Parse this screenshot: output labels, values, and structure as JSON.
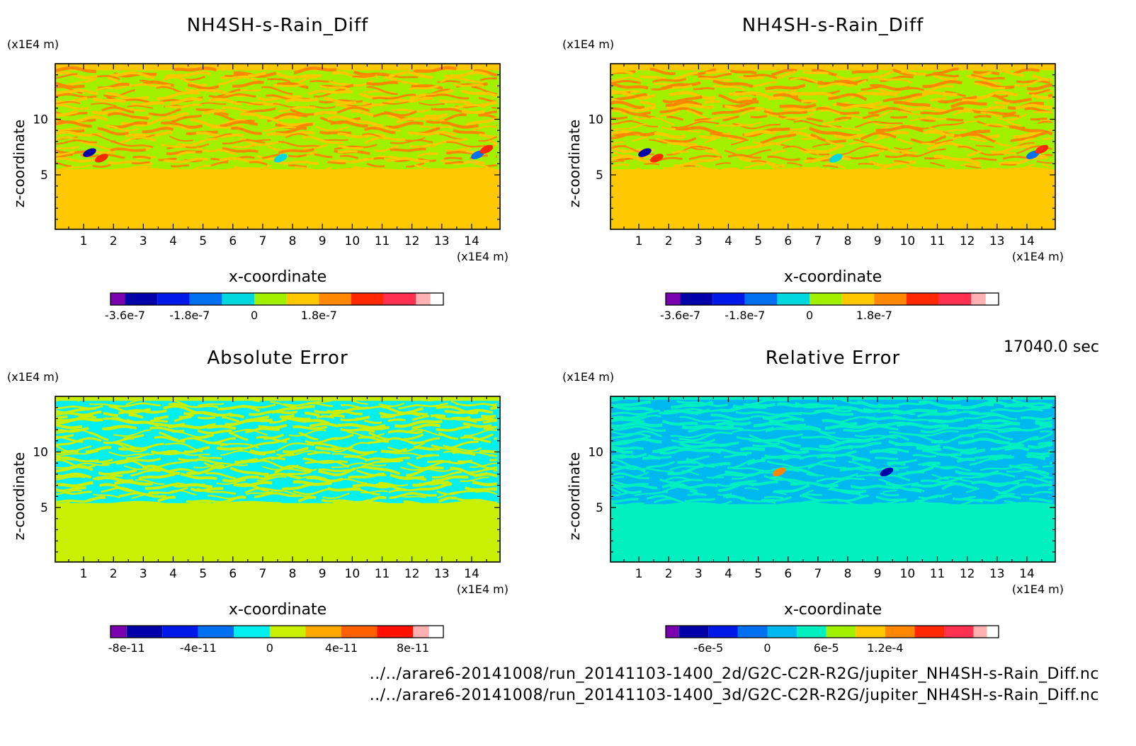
{
  "figure": {
    "timestamp": "17040.0 sec",
    "footer_lines": [
      "../../arare6-20141008/run_20141103-1400_2d/G2C-C2R-R2G/jupiter_NH4SH-s-Rain_Diff.nc",
      "../../arare6-20141008/run_20141103-1400_3d/G2C-C2R-R2G/jupiter_NH4SH-s-Rain_Diff.nc"
    ]
  },
  "chart_data": [
    {
      "type": "heatmap",
      "title": "NH4SH-s-Rain_Diff",
      "xlabel": "x-coordinate",
      "ylabel": "z-coordinate",
      "xunit": "(x1E4 m)",
      "yunit": "(x1E4 m)",
      "xlim": [
        0.05,
        14.95
      ],
      "ylim": [
        0.1,
        15.0
      ],
      "xticks": [
        1,
        2,
        3,
        4,
        5,
        6,
        7,
        8,
        9,
        10,
        11,
        12,
        13,
        14
      ],
      "yticks": [
        5,
        10
      ],
      "colorbar": {
        "colors": [
          "#7a00b0",
          "#0000a8",
          "#0018e8",
          "#0070f0",
          "#00d8e0",
          "#a0f000",
          "#ffc800",
          "#ff8800",
          "#ff2800",
          "#ff3050",
          "#ffb0b0"
        ],
        "tick_labels": [
          "-3.6e-7",
          "-1.8e-7",
          "0",
          "1.8e-7"
        ],
        "tick_positions": [
          1,
          3,
          5,
          7
        ]
      },
      "field": {
        "background": "#ffc800",
        "stripe_a": "#a0f000",
        "stripe_b": "#ff8800",
        "lower_fill": "#ffc800",
        "layer_top": 14.4,
        "layer_bottom": 5.5
      },
      "anomalies": [
        {
          "x": 1.2,
          "z": 7.0,
          "color": "#0000a8"
        },
        {
          "x": 1.6,
          "z": 6.5,
          "color": "#ff2800"
        },
        {
          "x": 14.2,
          "z": 6.8,
          "color": "#0070f0"
        },
        {
          "x": 14.5,
          "z": 7.3,
          "color": "#ff2800"
        },
        {
          "x": 7.6,
          "z": 6.5,
          "color": "#00d8e0"
        }
      ]
    },
    {
      "type": "heatmap",
      "title": "NH4SH-s-Rain_Diff",
      "xlabel": "x-coordinate",
      "ylabel": "z-coordinate",
      "xunit": "(x1E4 m)",
      "yunit": "(x1E4 m)",
      "xlim": [
        0.05,
        14.95
      ],
      "ylim": [
        0.1,
        15.0
      ],
      "xticks": [
        1,
        2,
        3,
        4,
        5,
        6,
        7,
        8,
        9,
        10,
        11,
        12,
        13,
        14
      ],
      "yticks": [
        5,
        10
      ],
      "colorbar": {
        "colors": [
          "#7a00b0",
          "#0000a8",
          "#0018e8",
          "#0070f0",
          "#00d8e0",
          "#a0f000",
          "#ffc800",
          "#ff8800",
          "#ff2800",
          "#ff3050",
          "#ffb0b0"
        ],
        "tick_labels": [
          "-3.6e-7",
          "-1.8e-7",
          "0",
          "1.8e-7"
        ],
        "tick_positions": [
          1,
          3,
          5,
          7
        ]
      },
      "field": {
        "background": "#ffc800",
        "stripe_a": "#a0f000",
        "stripe_b": "#ff8800",
        "lower_fill": "#ffc800",
        "layer_top": 14.4,
        "layer_bottom": 5.5
      },
      "anomalies": [
        {
          "x": 1.2,
          "z": 7.0,
          "color": "#0000a8"
        },
        {
          "x": 1.6,
          "z": 6.5,
          "color": "#ff2800"
        },
        {
          "x": 14.2,
          "z": 6.8,
          "color": "#0070f0"
        },
        {
          "x": 14.5,
          "z": 7.3,
          "color": "#ff2800"
        },
        {
          "x": 7.6,
          "z": 6.5,
          "color": "#00d8e0"
        }
      ]
    },
    {
      "type": "heatmap",
      "title": "Absolute Error",
      "xlabel": "x-coordinate",
      "ylabel": "z-coordinate",
      "xunit": "(x1E4 m)",
      "yunit": "(x1E4 m)",
      "xlim": [
        0.05,
        14.95
      ],
      "ylim": [
        0.1,
        15.0
      ],
      "xticks": [
        1,
        2,
        3,
        4,
        5,
        6,
        7,
        8,
        9,
        10,
        11,
        12,
        13,
        14
      ],
      "yticks": [
        5,
        10
      ],
      "colorbar": {
        "colors": [
          "#7a00b0",
          "#0000a8",
          "#0018e8",
          "#0070f0",
          "#00f0f0",
          "#c8f000",
          "#ffa800",
          "#ff6000",
          "#ff1000",
          "#ffb0b0"
        ],
        "tick_labels": [
          "-8e-11",
          "-4e-11",
          "0",
          "4e-11",
          "8e-11"
        ],
        "tick_positions": [
          1,
          3,
          5,
          7,
          9
        ]
      },
      "field": {
        "background": "#c8f000",
        "stripe_a": "#00f0f0",
        "stripe_b": "#c8f000",
        "lower_fill": "#c8f000",
        "layer_top": 14.6,
        "layer_bottom": 5.4
      },
      "anomalies": []
    },
    {
      "type": "heatmap",
      "title": "Relative Error",
      "xlabel": "x-coordinate",
      "ylabel": "z-coordinate",
      "xunit": "(x1E4 m)",
      "yunit": "(x1E4 m)",
      "xlim": [
        0.05,
        14.95
      ],
      "ylim": [
        0.1,
        15.0
      ],
      "xticks": [
        1,
        2,
        3,
        4,
        5,
        6,
        7,
        8,
        9,
        10,
        11,
        12,
        13,
        14
      ],
      "yticks": [
        5,
        10
      ],
      "colorbar": {
        "colors": [
          "#7a00b0",
          "#0000a8",
          "#0018e8",
          "#0070f0",
          "#00b8f0",
          "#00f0c0",
          "#a0f000",
          "#ffc800",
          "#ff8800",
          "#ff2800",
          "#ff3050",
          "#ffb0b0"
        ],
        "tick_labels": [
          "-6e-5",
          "0",
          "6e-5",
          "1.2e-4"
        ],
        "tick_positions": [
          2,
          4,
          6,
          8
        ]
      },
      "field": {
        "background": "#00f0c0",
        "stripe_a": "#00b8f0",
        "stripe_b": "#00f0c0",
        "lower_fill": "#00f0c0",
        "layer_top": 14.7,
        "layer_bottom": 5.3
      },
      "anomalies": [
        {
          "x": 5.7,
          "z": 8.2,
          "color": "#ff8800"
        },
        {
          "x": 9.3,
          "z": 8.2,
          "color": "#0000a8"
        }
      ]
    }
  ]
}
